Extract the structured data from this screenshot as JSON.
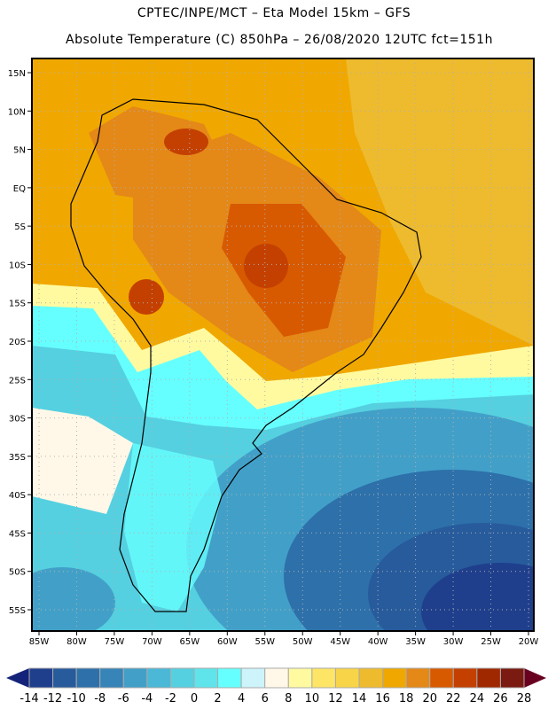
{
  "header": {
    "title": "CPTEC/INPE/MCT –  Eta Model 15km – GFS",
    "subtitle": "Absolute Temperature (C) 850hPa – 26/08/2020 12UTC fct=151h"
  },
  "map": {
    "lat_labels": [
      "15N",
      "10N",
      "5N",
      "EQ",
      "5S",
      "10S",
      "15S",
      "20S",
      "25S",
      "30S",
      "35S",
      "40S",
      "45S",
      "50S",
      "55S"
    ],
    "lon_labels": [
      "85W",
      "80W",
      "75W",
      "70W",
      "65W",
      "60W",
      "55W",
      "50W",
      "45W",
      "40W",
      "35W",
      "30W",
      "25W",
      "20W"
    ]
  },
  "colorbar": {
    "labels": [
      "-14",
      "-12",
      "-10",
      "-8",
      "-6",
      "-4",
      "-2",
      "0",
      "2",
      "4",
      "6",
      "8",
      "10",
      "12",
      "14",
      "16",
      "18",
      "20",
      "22",
      "24",
      "26",
      "28"
    ],
    "colors": [
      "#1f3f8c",
      "#275b9c",
      "#2d70aa",
      "#3684b8",
      "#42a0c8",
      "#4ab8d6",
      "#55d0e0",
      "#5ee4ea",
      "#66ffff",
      "#ccf4fa",
      "#fff8e8",
      "#fffaa0",
      "#ffe566",
      "#f8d448",
      "#eebb2e",
      "#f0a800",
      "#e48818",
      "#d85a00",
      "#c44000",
      "#a02800",
      "#7a1a10"
    ],
    "low_arrow_color": "#14237a",
    "high_arrow_color": "#6a0020"
  }
}
